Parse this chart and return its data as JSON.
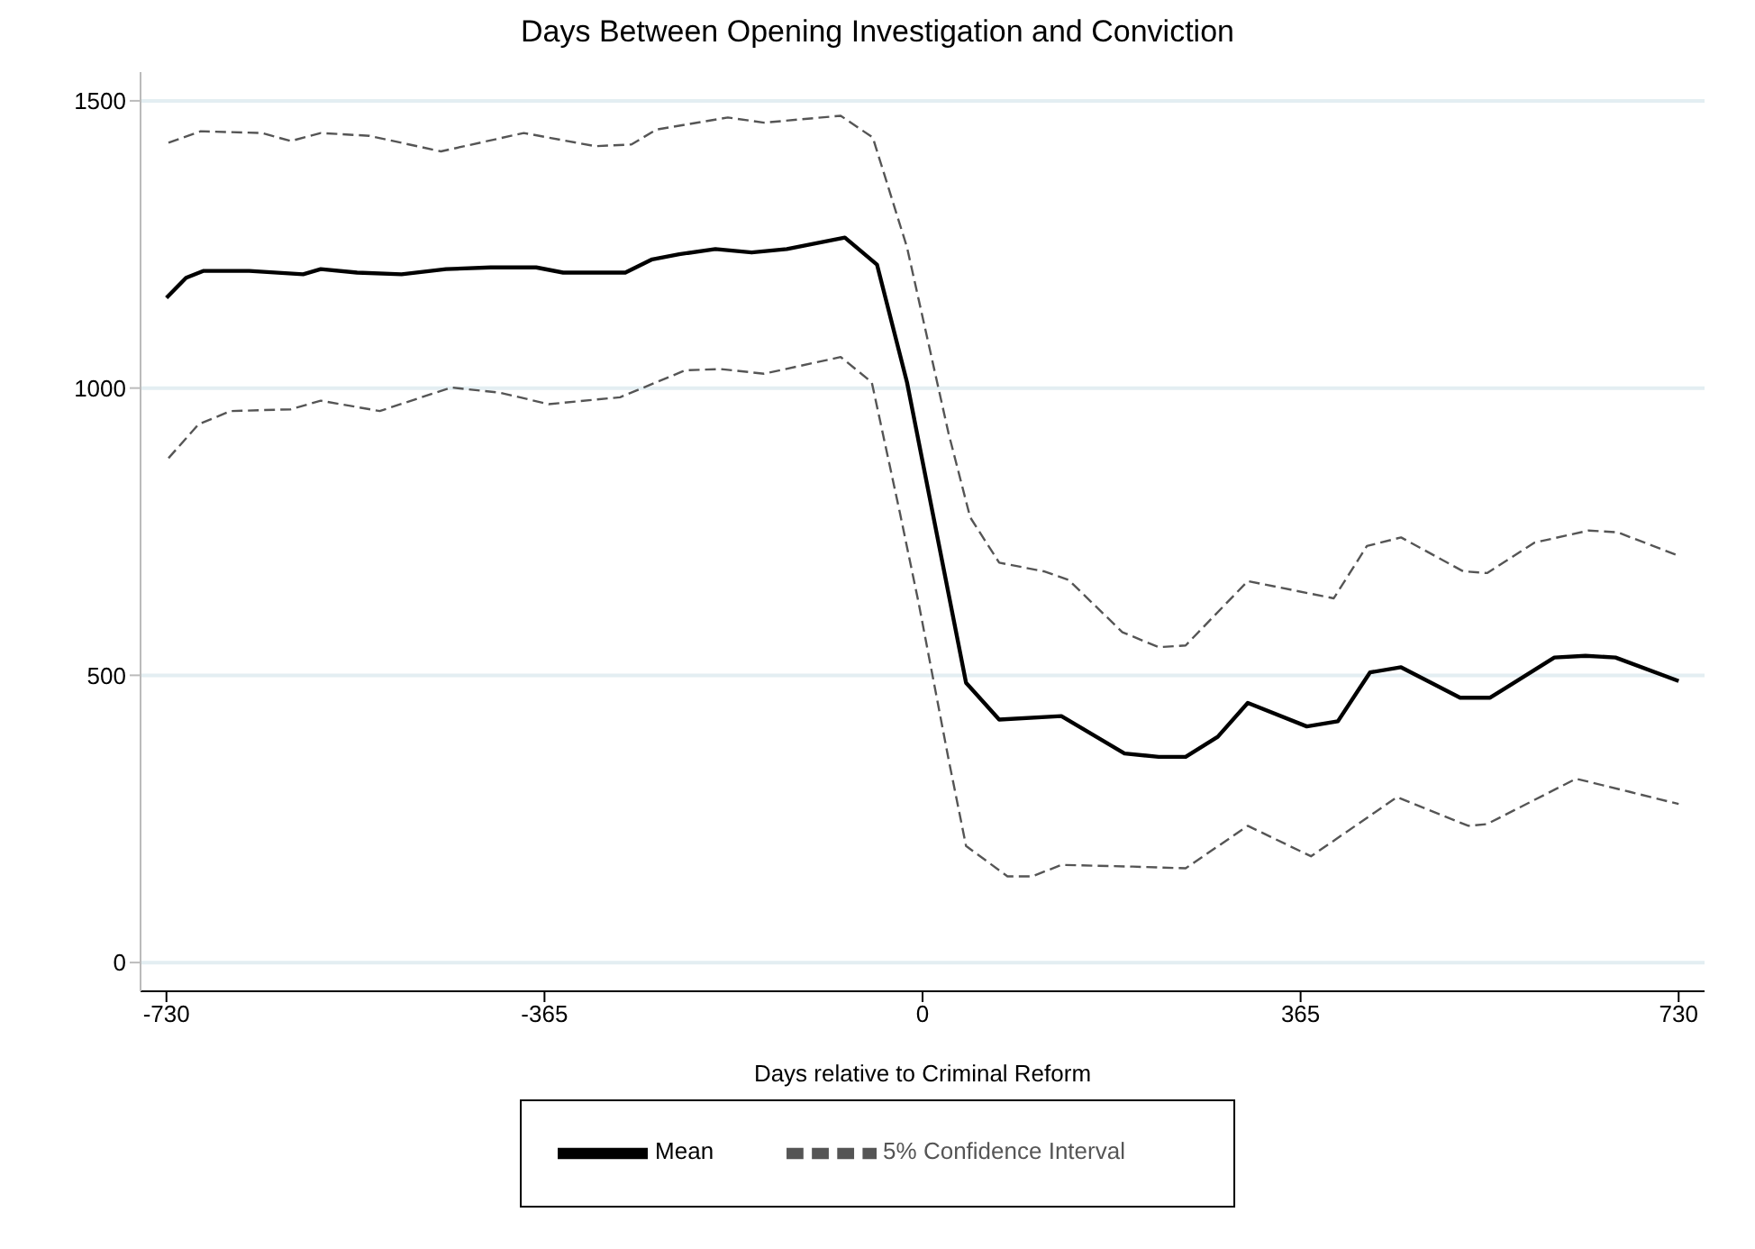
{
  "chart_data": {
    "type": "line",
    "title": "Days Between Opening Investigation and Conviction",
    "xlabel": "Days relative to Criminal Reform",
    "xlim": [
      -755,
      755
    ],
    "xticks": [
      -730,
      -365,
      0,
      365,
      730
    ],
    "ylim": [
      -50,
      1550
    ],
    "yticks": [
      0,
      500,
      1000,
      1500
    ],
    "grid": "y",
    "legend": "bottom",
    "marker": "none",
    "series": [
      {
        "name": "Mean",
        "color": "#000000",
        "line_style": "solid",
        "x": [
          -730,
          -711,
          -694,
          -650,
          -598,
          -581,
          -546,
          -503,
          -460,
          -417,
          -373,
          -347,
          -287,
          -261,
          -235,
          -200,
          -165,
          -131,
          -75,
          -44,
          -15,
          42,
          74,
          134,
          195,
          228,
          254,
          285,
          314,
          371,
          401,
          432,
          462,
          519,
          548,
          610,
          640,
          669,
          730
        ],
        "values": [
          1157,
          1192,
          1204,
          1204,
          1198,
          1207,
          1201,
          1198,
          1207,
          1210,
          1210,
          1201,
          1201,
          1224,
          1233,
          1242,
          1236,
          1242,
          1262,
          1215,
          1010,
          487,
          423,
          429,
          364,
          358,
          358,
          393,
          452,
          411,
          420,
          505,
          514,
          461,
          461,
          531,
          534,
          531,
          490
        ]
      },
      {
        "name": "5% Confidence Interval",
        "color": "#555555",
        "line_style": "dashed",
        "x": [
          -728,
          -697,
          -638,
          -610,
          -581,
          -534,
          -465,
          -385,
          -316,
          -281,
          -257,
          -188,
          -153,
          -79,
          -48,
          -15,
          25,
          46,
          74,
          117,
          141,
          193,
          228,
          254,
          314,
          397,
          429,
          462,
          522,
          545,
          591,
          643,
          671,
          730
        ],
        "values": [
          1427,
          1447,
          1444,
          1430,
          1444,
          1439,
          1412,
          1444,
          1421,
          1424,
          1450,
          1471,
          1462,
          1474,
          1436,
          1245,
          922,
          775,
          696,
          681,
          666,
          575,
          549,
          552,
          664,
          634,
          725,
          740,
          681,
          678,
          731,
          752,
          749,
          708
        ]
      },
      {
        "color": "#555555",
        "line_style": "dashed",
        "x": [
          -728,
          -699,
          -668,
          -610,
          -581,
          -524,
          -455,
          -408,
          -361,
          -292,
          -229,
          -195,
          -153,
          -79,
          -49,
          -22,
          -4,
          25,
          42,
          82,
          106,
          134,
          203,
          254,
          314,
          375,
          401,
          458,
          527,
          545,
          631,
          683,
          730
        ],
        "values": [
          878,
          937,
          960,
          963,
          978,
          960,
          1001,
          992,
          972,
          984,
          1031,
          1033,
          1025,
          1054,
          1010,
          784,
          628,
          355,
          203,
          150,
          150,
          170,
          167,
          164,
          238,
          185,
          217,
          288,
          238,
          241,
          320,
          297,
          276
        ]
      }
    ]
  }
}
